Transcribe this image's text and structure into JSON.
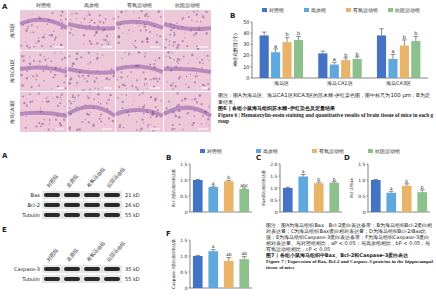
{
  "figure6": {
    "panel_a": {
      "label": "A",
      "columns": [
        "对照组",
        "高原组",
        "有氧运动组",
        "抗阻运动组"
      ],
      "rows": [
        "海马区",
        "海马CA1区",
        "海马CA3区"
      ]
    },
    "note": "图注：图A为海马区、海马CA1区和CA3区的苏木精-伊红染色图，图中标尺为100 μm；B为定量结果。",
    "title": "图6 | 各组小鼠海马组织苏木精-伊红染色及定量结果",
    "title_en": "Figure 6 | Hematoxylin-eosin staining and quantitative results of brain tissue of mice in each group"
  },
  "figure7": {
    "panel_a": {
      "label": "A",
      "columns": [
        "对照组",
        "高原组",
        "有氧运动组",
        "抗阻运动组"
      ],
      "rows": [
        {
          "name": "Bax",
          "size": "21 kD"
        },
        {
          "name": "Bcl-2",
          "size": "26 kD"
        },
        {
          "name": "Tubulin",
          "size": "55 kD"
        }
      ]
    },
    "panel_e": {
      "label": "E",
      "columns": [
        "对照组",
        "高原组",
        "有氧运动组",
        "抗阻运动组"
      ],
      "rows": [
        {
          "name": "Caspase-3",
          "size": "35 kD"
        },
        {
          "name": "Tubulin",
          "size": "55 kD"
        }
      ]
    },
    "legend": [
      {
        "name": "对照组",
        "color": "#4472c4"
      },
      {
        "name": "高原组",
        "color": "#5fa8de"
      },
      {
        "name": "有氧运动组",
        "color": "#e8b46a"
      },
      {
        "name": "抗阻运动组",
        "color": "#8cc08c"
      }
    ],
    "note": "图注：图A为海马组织Bax、Bcl-2蛋白表达条带；B为海马组织Bcl-2蛋白相对表达量；C为海马组织Bax蛋白相对表达量；D为海马组织Bcl-2/Bax比值；E为海马组织Caspase-3蛋白表达条带；F为海马组织Caspase-3蛋白相对表达量。与对照组相比，aP < 0.05；与高原组相比，bP < 0.05；与有氧运动组相比，cP < 0.05",
    "title": "图7 | 各组小鼠海马组织中Bax、Bcl-2和Caspase-3蛋白表达",
    "title_en": "Figure 7 | Expression of Bax, Bcl-2 and Caspase-3 proteins in the hippocampal tissue of mice"
  },
  "chart_data": [
    {
      "type": "bar",
      "panel_label": "B",
      "ylabel": "神经元数目(个)",
      "categories": [
        "海马区",
        "海马CA1区",
        "海马CA3区"
      ],
      "series": [
        {
          "name": "对照组",
          "color": "#4472c4",
          "values": [
            38,
            22,
            38
          ],
          "errors": [
            3,
            2,
            6
          ]
        },
        {
          "name": "高原组",
          "color": "#5fa8de",
          "values": [
            23,
            12,
            17
          ],
          "errors": [
            3,
            2,
            4
          ],
          "sig": [
            "a",
            "a",
            "a"
          ]
        },
        {
          "name": "有氧运动组",
          "color": "#e8b46a",
          "values": [
            32,
            16,
            29
          ],
          "errors": [
            4,
            2,
            5
          ],
          "sig": [
            "b",
            "b",
            "b"
          ]
        },
        {
          "name": "抗阻运动组",
          "color": "#8cc08c",
          "values": [
            34,
            17,
            33
          ],
          "errors": [
            3,
            2,
            4
          ],
          "sig": [
            "b",
            "b",
            "b"
          ]
        }
      ],
      "ylim": [
        0,
        50
      ],
      "yticks": [
        0,
        10,
        20,
        30,
        40,
        50
      ],
      "legend": "top"
    },
    {
      "type": "bar",
      "panel_label": "B",
      "ylabel": "Bcl-2蛋白相对表达量",
      "categories": [
        null,
        null,
        null,
        null
      ],
      "values": [
        1.0,
        0.78,
        0.96,
        0.72
      ],
      "errors": [
        0.02,
        0.03,
        0.03,
        0.03
      ],
      "sig": [
        null,
        "a",
        "b",
        "abc"
      ],
      "colors": [
        "#4472c4",
        "#5fa8de",
        "#e8b46a",
        "#8cc08c"
      ],
      "ylim": [
        0,
        1.5
      ],
      "yticks": [
        0,
        0.5,
        {
          "value": 1,
          "label": "1.0"
        },
        1.5
      ],
      "tick_labels": "y"
    },
    {
      "type": "bar",
      "panel_label": "C",
      "ylabel": "Bax蛋白相对表达量",
      "categories": [
        null,
        null,
        null,
        null
      ],
      "values": [
        1.0,
        1.48,
        1.2,
        1.22
      ],
      "errors": [
        0.03,
        0.08,
        0.05,
        0.04
      ],
      "sig": [
        null,
        "a",
        "b",
        "b"
      ],
      "colors": [
        "#4472c4",
        "#5fa8de",
        "#e8b46a",
        "#8cc08c"
      ],
      "ylim": [
        0,
        2
      ],
      "yticks": [
        0,
        0.5,
        {
          "value": 1,
          "label": "1.0"
        },
        1.5,
        {
          "value": 2,
          "label": "2.0"
        }
      ],
      "tick_labels": "y"
    },
    {
      "type": "bar",
      "panel_label": "D",
      "ylabel": "Bcl-2/Bax",
      "categories": [
        null,
        null,
        null,
        null
      ],
      "values": [
        1.0,
        0.6,
        0.82,
        0.62
      ],
      "errors": [
        0.02,
        0.05,
        0.06,
        0.07
      ],
      "sig": [
        null,
        "a",
        "b",
        "b"
      ],
      "colors": [
        "#4472c4",
        "#5fa8de",
        "#e8b46a",
        "#8cc08c"
      ],
      "ylim": [
        0,
        1.5
      ],
      "yticks": [
        0,
        0.5,
        {
          "value": 1,
          "label": "1.0"
        },
        1.5
      ],
      "tick_labels": "y"
    },
    {
      "type": "bar",
      "panel_label": "F",
      "ylabel": "Caspase-3蛋白相对表达量",
      "categories": [
        null,
        null,
        null,
        null
      ],
      "values": [
        1.0,
        1.15,
        0.85,
        0.9
      ],
      "errors": [
        0.02,
        0.05,
        0.1,
        0.08
      ],
      "sig": [
        null,
        "a",
        "ab",
        "ab"
      ],
      "colors": [
        "#4472c4",
        "#5fa8de",
        "#e8b46a",
        "#8cc08c"
      ],
      "ylim": [
        0,
        1.5
      ],
      "yticks": [
        0,
        0.5,
        {
          "value": 1,
          "label": "1.0"
        },
        1.5
      ],
      "tick_labels": "y"
    }
  ]
}
